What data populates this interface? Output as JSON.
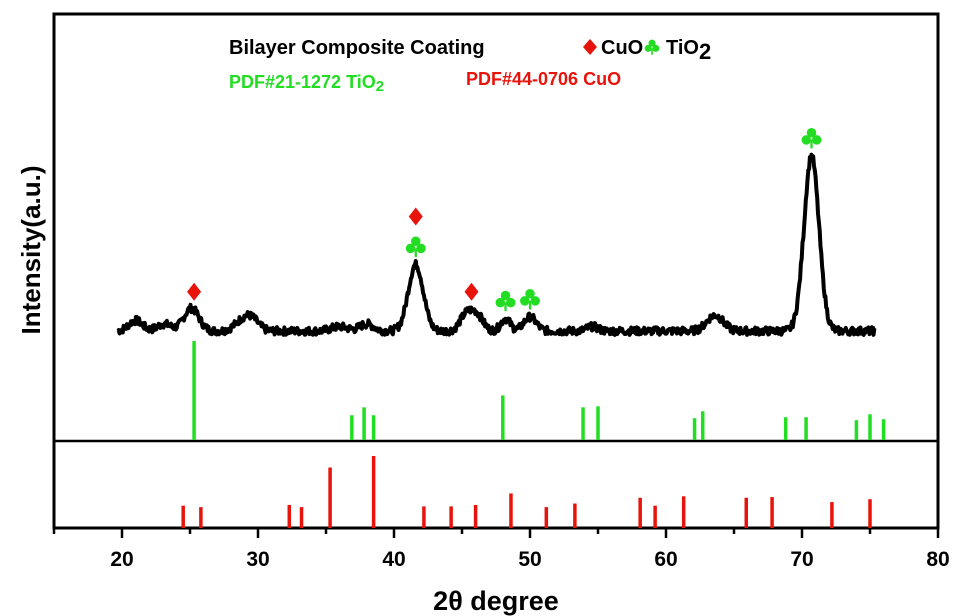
{
  "chart_data": {
    "type": "line",
    "xlabel_main": "2θ degree",
    "ylabel": "Intensity(a.u.)",
    "xlim": [
      15,
      80
    ],
    "xticks": [
      20,
      30,
      40,
      50,
      60,
      70,
      80
    ],
    "grid": false,
    "legend": {
      "title": "Bilayer Composite Coating",
      "cuo_label": "CuO",
      "tio2_label": "TiO",
      "tio2_sub": "2",
      "placement": "top-center",
      "cuo_marker": "diamond",
      "tio2_marker": "club"
    },
    "reference_labels": {
      "tio2_text": "PDF#21-1272 TiO",
      "tio2_sub": "2",
      "cuo_text": "PDF#44-0706 CuO"
    },
    "colors": {
      "curve": "#000000",
      "tio2": "#22dd22",
      "cuo": "#e8140c",
      "frame": "#000000"
    },
    "pattern_peaks": [
      {
        "x": 21.0,
        "h": 0.06,
        "w": 0.5
      },
      {
        "x": 23.1,
        "h": 0.04,
        "w": 0.5
      },
      {
        "x": 25.1,
        "h": 0.13,
        "w": 0.55
      },
      {
        "x": 28.9,
        "h": 0.06,
        "w": 0.6
      },
      {
        "x": 29.6,
        "h": 0.05,
        "w": 0.5
      },
      {
        "x": 36.0,
        "h": 0.025,
        "w": 0.6
      },
      {
        "x": 38.0,
        "h": 0.04,
        "w": 0.5
      },
      {
        "x": 41.6,
        "h": 0.38,
        "w": 0.55
      },
      {
        "x": 45.3,
        "h": 0.09,
        "w": 0.45
      },
      {
        "x": 46.1,
        "h": 0.09,
        "w": 0.45
      },
      {
        "x": 48.2,
        "h": 0.07,
        "w": 0.35
      },
      {
        "x": 50.0,
        "h": 0.08,
        "w": 0.45
      },
      {
        "x": 54.6,
        "h": 0.025,
        "w": 0.4
      },
      {
        "x": 63.6,
        "h": 0.09,
        "w": 0.6
      },
      {
        "x": 70.7,
        "h": 1.0,
        "w": 0.55
      }
    ],
    "pattern_range": [
      19.7,
      75.4
    ],
    "series": [
      {
        "name": "PDF#21-1272 TiO2",
        "color": "#22dd22",
        "peaks": [
          {
            "x": 25.3,
            "i": 100
          },
          {
            "x": 36.9,
            "i": 25
          },
          {
            "x": 37.8,
            "i": 33
          },
          {
            "x": 38.5,
            "i": 25
          },
          {
            "x": 48.0,
            "i": 45
          },
          {
            "x": 53.9,
            "i": 33
          },
          {
            "x": 55.0,
            "i": 34
          },
          {
            "x": 62.1,
            "i": 22
          },
          {
            "x": 62.7,
            "i": 29
          },
          {
            "x": 68.8,
            "i": 23
          },
          {
            "x": 70.3,
            "i": 23
          },
          {
            "x": 74.0,
            "i": 20
          },
          {
            "x": 75.0,
            "i": 26
          },
          {
            "x": 76.0,
            "i": 21
          }
        ]
      },
      {
        "name": "PDF#44-0706 CuO",
        "color": "#e8140c",
        "peaks": [
          {
            "x": 24.5,
            "i": 31
          },
          {
            "x": 25.8,
            "i": 29
          },
          {
            "x": 32.3,
            "i": 32
          },
          {
            "x": 33.2,
            "i": 29
          },
          {
            "x": 35.3,
            "i": 84
          },
          {
            "x": 38.5,
            "i": 100
          },
          {
            "x": 42.2,
            "i": 30
          },
          {
            "x": 44.2,
            "i": 30
          },
          {
            "x": 46.0,
            "i": 32
          },
          {
            "x": 48.6,
            "i": 48
          },
          {
            "x": 51.2,
            "i": 29
          },
          {
            "x": 53.3,
            "i": 34
          },
          {
            "x": 58.1,
            "i": 42
          },
          {
            "x": 59.2,
            "i": 31
          },
          {
            "x": 61.3,
            "i": 44
          },
          {
            "x": 65.9,
            "i": 42
          },
          {
            "x": 67.8,
            "i": 43
          },
          {
            "x": 72.2,
            "i": 36
          },
          {
            "x": 75.0,
            "i": 40
          }
        ]
      }
    ],
    "annotations": [
      {
        "x": 25.3,
        "marker": "cuo",
        "level": 1
      },
      {
        "x": 41.6,
        "marker": "cuo",
        "level": 2
      },
      {
        "x": 41.6,
        "marker": "tio2",
        "level": 1
      },
      {
        "x": 45.7,
        "marker": "cuo",
        "level": 1
      },
      {
        "x": 48.2,
        "marker": "tio2",
        "level": 1
      },
      {
        "x": 50.0,
        "marker": "tio2",
        "level": 1
      },
      {
        "x": 70.7,
        "marker": "tio2",
        "level": 1
      }
    ]
  }
}
